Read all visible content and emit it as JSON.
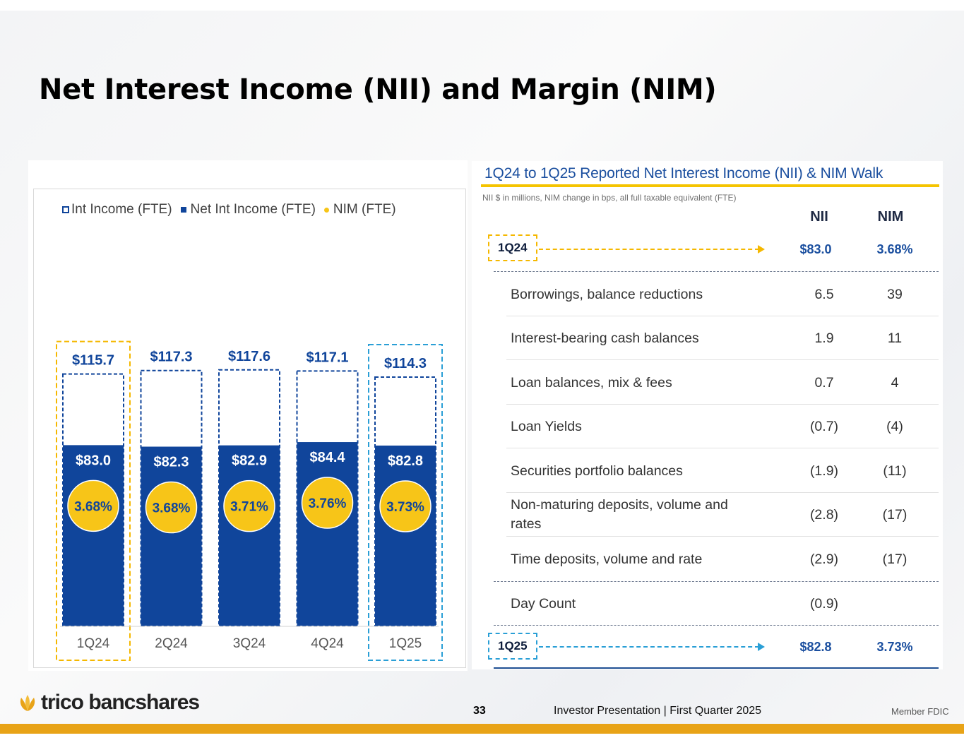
{
  "title": "Net Interest Income (NII) and Margin (NIM)",
  "colors": {
    "accent_blue": "#10459b",
    "nim_yellow": "#f7c518",
    "highlight_yellow": "#f5b800",
    "highlight_cyan": "#2a9fd6",
    "footer_gold": "#e8a317"
  },
  "legend": {
    "int_income": "Int Income (FTE)",
    "net_int_income": "Net Int Income (FTE)",
    "nim": "NIM (FTE)"
  },
  "chart_data": {
    "type": "bar",
    "categories": [
      "1Q24",
      "2Q24",
      "3Q24",
      "4Q24",
      "1Q25"
    ],
    "series": [
      {
        "name": "Int Income (FTE)",
        "values": [
          115.7,
          117.3,
          117.6,
          117.1,
          114.3
        ],
        "labels": [
          "$115.7",
          "$117.3",
          "$117.6",
          "$117.1",
          "$114.3"
        ]
      },
      {
        "name": "Net Int Income (FTE)",
        "values": [
          83.0,
          82.3,
          82.9,
          84.4,
          82.8
        ],
        "labels": [
          "$83.0",
          "$82.3",
          "$82.9",
          "$84.4",
          "$82.8"
        ]
      },
      {
        "name": "NIM (FTE)",
        "values": [
          3.68,
          3.68,
          3.71,
          3.76,
          3.73
        ],
        "labels": [
          "3.68%",
          "3.68%",
          "3.71%",
          "3.76%",
          "3.73%"
        ]
      }
    ],
    "ylim": [
      0,
      120
    ],
    "highlighted_categories": [
      "1Q24",
      "1Q25"
    ]
  },
  "walk": {
    "title": "1Q24 to 1Q25 Reported Net Interest Income (NII) & NIM Walk",
    "subtitle": "NII $ in millions, NIM change in bps, all full taxable equivalent (FTE)",
    "col_nii": "NII",
    "col_nim": "NIM",
    "start": {
      "label": "1Q24",
      "nii": "$83.0",
      "nim": "3.68%"
    },
    "rows": [
      {
        "label": "Borrowings, balance reductions",
        "nii": "6.5",
        "nim": "39"
      },
      {
        "label": "Interest-bearing cash balances",
        "nii": "1.9",
        "nim": "11"
      },
      {
        "label": "Loan balances, mix & fees",
        "nii": "0.7",
        "nim": "4"
      },
      {
        "label": "Loan Yields",
        "nii": "(0.7)",
        "nim": "(4)"
      },
      {
        "label": "Securities portfolio balances",
        "nii": "(1.9)",
        "nim": "(11)"
      },
      {
        "label": "Non-maturing deposits, volume and rates",
        "nii": "(2.8)",
        "nim": "(17)"
      },
      {
        "label": "Time deposits, volume and rate",
        "nii": "(2.9)",
        "nim": "(17)"
      },
      {
        "label": "Day Count",
        "nii": "(0.9)",
        "nim": ""
      }
    ],
    "end": {
      "label": "1Q25",
      "nii": "$82.8",
      "nim": "3.73%"
    }
  },
  "footer": {
    "logo": "trico bancshares",
    "page_number": "33",
    "text": "Investor Presentation  |  First Quarter 2025",
    "member": "Member FDIC"
  }
}
